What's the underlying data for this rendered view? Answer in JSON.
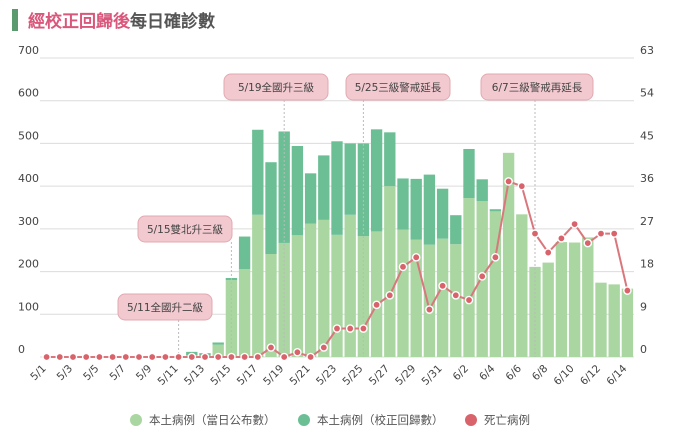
{
  "title": {
    "accent": "經校正回歸後",
    "rest": "每日確診數"
  },
  "colors": {
    "base": "#a9d6a1",
    "corrected": "#6cbf95",
    "deaths_line": "#d9777d",
    "deaths_dot": "#d9636b",
    "title_bar": "#5a9a6e"
  },
  "chart_data": {
    "type": "bar",
    "title": "經校正回歸後每日確診數",
    "categories": [
      "5/1",
      "5/2",
      "5/3",
      "5/4",
      "5/5",
      "5/6",
      "5/7",
      "5/8",
      "5/9",
      "5/10",
      "5/11",
      "5/12",
      "5/13",
      "5/14",
      "5/15",
      "5/16",
      "5/17",
      "5/18",
      "5/19",
      "5/20",
      "5/21",
      "5/22",
      "5/23",
      "5/24",
      "5/25",
      "5/26",
      "5/27",
      "5/28",
      "5/29",
      "5/30",
      "5/31",
      "6/1",
      "6/2",
      "6/3",
      "6/4",
      "6/5",
      "6/6",
      "6/7",
      "6/8",
      "6/9",
      "6/10",
      "6/11",
      "6/12",
      "6/13",
      "6/14"
    ],
    "x_tick_labels": [
      "5/1",
      "5/3",
      "5/5",
      "5/7",
      "5/9",
      "5/11",
      "5/13",
      "5/15",
      "5/17",
      "5/19",
      "5/21",
      "5/23",
      "5/25",
      "5/27",
      "5/29",
      "5/31",
      "6/2",
      "6/4",
      "6/6",
      "6/8",
      "6/10",
      "6/12",
      "6/14"
    ],
    "y_left": {
      "min": 0,
      "max": 700,
      "ticks": [
        0,
        100,
        200,
        300,
        400,
        500,
        600,
        700
      ]
    },
    "y_right": {
      "min": 0,
      "max": 63,
      "ticks": [
        0,
        9,
        18,
        27,
        36,
        45,
        54,
        63
      ]
    },
    "series": [
      {
        "name": "本土病例（當日公布數）",
        "axis": "left",
        "kind": "stacked-bar",
        "values": [
          0,
          0,
          0,
          0,
          0,
          0,
          0,
          0,
          0,
          0,
          2,
          4,
          3,
          29,
          180,
          206,
          333,
          241,
          267,
          285,
          312,
          321,
          286,
          333,
          283,
          294,
          400,
          298,
          275,
          263,
          277,
          264,
          372,
          365,
          341,
          478,
          334,
          211,
          221,
          269,
          268,
          280,
          174,
          170,
          160
        ]
      },
      {
        "name": "本土病例（校正回歸數）",
        "axis": "left",
        "kind": "stacked-bar",
        "values": [
          0,
          0,
          0,
          0,
          0,
          0,
          0,
          0,
          0,
          0,
          0,
          8,
          6,
          5,
          5,
          76,
          199,
          215,
          261,
          209,
          118,
          151,
          219,
          167,
          217,
          239,
          126,
          120,
          142,
          164,
          117,
          68,
          115,
          51,
          5,
          0,
          0,
          0,
          0,
          0,
          0,
          0,
          0,
          0,
          0
        ]
      },
      {
        "name": "死亡病例",
        "axis": "right",
        "kind": "line",
        "values": [
          0,
          0,
          0,
          0,
          0,
          0,
          0,
          0,
          0,
          0,
          0,
          0,
          0,
          0,
          0,
          0,
          0,
          2,
          0,
          1,
          0,
          2,
          6,
          6,
          6,
          11,
          13,
          19,
          21,
          10,
          15,
          13,
          12,
          17,
          21,
          37,
          36,
          26,
          22,
          25,
          28,
          24,
          26,
          26,
          14
        ]
      }
    ],
    "annotations": [
      {
        "text": "5/11全國升二級",
        "date": "5/11"
      },
      {
        "text": "5/15雙北升三級",
        "date": "5/15"
      },
      {
        "text": "5/19全國升三級",
        "date": "5/19"
      },
      {
        "text": "5/25三級警戒延長",
        "date": "5/25"
      },
      {
        "text": "6/7三級警戒再延長",
        "date": "6/7"
      }
    ],
    "legend": [
      "本土病例（當日公布數）",
      "本土病例（校正回歸數）",
      "死亡病例"
    ],
    "legend_position": "bottom"
  }
}
